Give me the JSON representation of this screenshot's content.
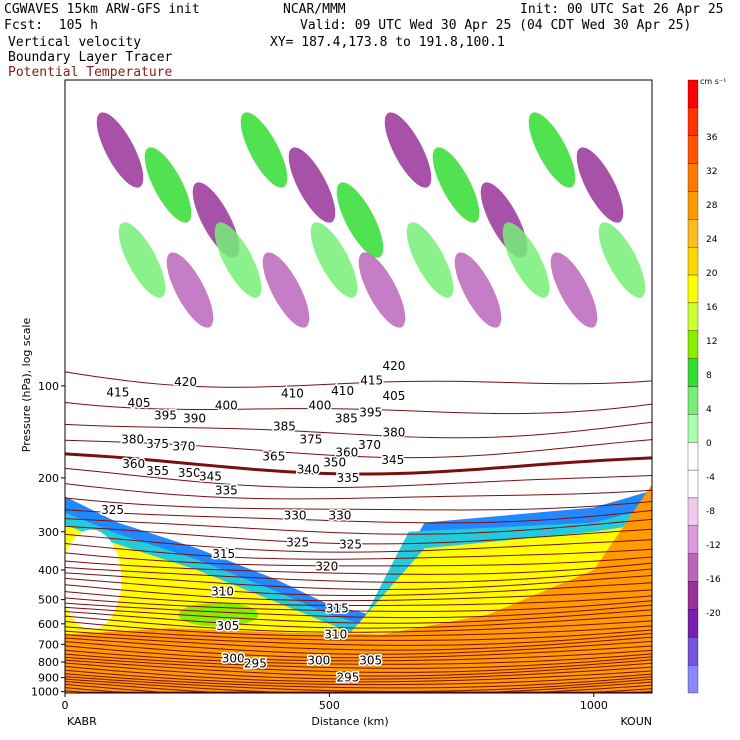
{
  "header": {
    "model": "CGWAVES 15km ARW-GFS init",
    "org": "NCAR/MMM",
    "init": "Init: 00 UTC Sat 26 Apr 25",
    "fcst": "Fcst:  105 h",
    "valid": "Valid: 09 UTC Wed 30 Apr 25 (04 CDT Wed 30 Apr 25)",
    "field1": "Vertical velocity",
    "field2": "Boundary Layer Tracer",
    "field3": "Potential Temperature",
    "xy": "XY= 187.4,173.8 to 191.8,100.1"
  },
  "chart_data": {
    "type": "heatmap",
    "title": "",
    "xlabel": "Distance (km)",
    "ylabel": "Pressure (hPa), log scale",
    "xlim": [
      0,
      1110
    ],
    "ylim": [
      1010,
      10
    ],
    "y_scale": "log",
    "x_ticks": [
      0,
      500,
      1000
    ],
    "y_ticks": [
      100,
      200,
      300,
      400,
      500,
      600,
      700,
      800,
      900,
      1000
    ],
    "left_endpoint": "KABR",
    "right_endpoint": "KOUN",
    "colorbar": {
      "units": "cm s⁻¹",
      "tick_labels": [
        36,
        32,
        28,
        24,
        20,
        16,
        12,
        8,
        4,
        0,
        -4,
        -8,
        -12,
        -16,
        -20
      ],
      "colors": [
        "#ff0000",
        "#ff3300",
        "#ff5500",
        "#ff7a00",
        "#ff9a00",
        "#ffbb22",
        "#ffd700",
        "#ffff00",
        "#ccff33",
        "#88ee00",
        "#33dd33",
        "#77ee77",
        "#aaffaa",
        "#ffffff",
        "#ffffff",
        "#eeccee",
        "#dd99dd",
        "#bb66bb",
        "#993399",
        "#7722aa",
        "#7755dd",
        "#8888ff"
      ]
    },
    "theta_labels": [
      {
        "v": "420",
        "x": 228,
        "p": 97
      },
      {
        "v": "415",
        "x": 100,
        "p": 105
      },
      {
        "v": "405",
        "x": 140,
        "p": 114
      },
      {
        "v": "395",
        "x": 190,
        "p": 125
      },
      {
        "v": "390",
        "x": 245,
        "p": 128
      },
      {
        "v": "400",
        "x": 305,
        "p": 116
      },
      {
        "v": "380",
        "x": 128,
        "p": 150
      },
      {
        "v": "375",
        "x": 175,
        "p": 155
      },
      {
        "v": "370",
        "x": 225,
        "p": 158
      },
      {
        "v": "360",
        "x": 130,
        "p": 180
      },
      {
        "v": "355",
        "x": 175,
        "p": 190
      },
      {
        "v": "350",
        "x": 235,
        "p": 193
      },
      {
        "v": "345",
        "x": 275,
        "p": 198
      },
      {
        "v": "335",
        "x": 305,
        "p": 220
      },
      {
        "v": "325",
        "x": 90,
        "p": 255
      },
      {
        "v": "410",
        "x": 430,
        "p": 106
      },
      {
        "v": "385",
        "x": 415,
        "p": 136
      },
      {
        "v": "375",
        "x": 465,
        "p": 150
      },
      {
        "v": "365",
        "x": 395,
        "p": 170
      },
      {
        "v": "340",
        "x": 460,
        "p": 188
      },
      {
        "v": "350",
        "x": 510,
        "p": 178
      },
      {
        "v": "335",
        "x": 535,
        "p": 200
      },
      {
        "v": "330",
        "x": 435,
        "p": 265
      },
      {
        "v": "330",
        "x": 520,
        "p": 265
      },
      {
        "v": "325",
        "x": 440,
        "p": 325
      },
      {
        "v": "325",
        "x": 540,
        "p": 330
      },
      {
        "v": "320",
        "x": 495,
        "p": 390
      },
      {
        "v": "315",
        "x": 300,
        "p": 355
      },
      {
        "v": "310",
        "x": 298,
        "p": 470
      },
      {
        "v": "305",
        "x": 308,
        "p": 610
      },
      {
        "v": "315",
        "x": 515,
        "p": 535
      },
      {
        "v": "310",
        "x": 512,
        "p": 650
      },
      {
        "v": "410",
        "x": 525,
        "p": 104
      },
      {
        "v": "400",
        "x": 482,
        "p": 116
      },
      {
        "v": "385",
        "x": 532,
        "p": 128
      },
      {
        "v": "395",
        "x": 578,
        "p": 122
      },
      {
        "v": "415",
        "x": 580,
        "p": 96
      },
      {
        "v": "405",
        "x": 622,
        "p": 108
      },
      {
        "v": "370",
        "x": 576,
        "p": 156
      },
      {
        "v": "360",
        "x": 533,
        "p": 165
      },
      {
        "v": "380",
        "x": 622,
        "p": 142
      },
      {
        "v": "300",
        "x": 318,
        "p": 780
      },
      {
        "v": "295",
        "x": 360,
        "p": 810
      },
      {
        "v": "300",
        "x": 480,
        "p": 790
      },
      {
        "v": "295",
        "x": 535,
        "p": 900
      },
      {
        "v": "305",
        "x": 578,
        "p": 790
      },
      {
        "v": "420",
        "x": 622,
        "p": 86
      },
      {
        "v": "345",
        "x": 620,
        "p": 175
      }
    ]
  }
}
